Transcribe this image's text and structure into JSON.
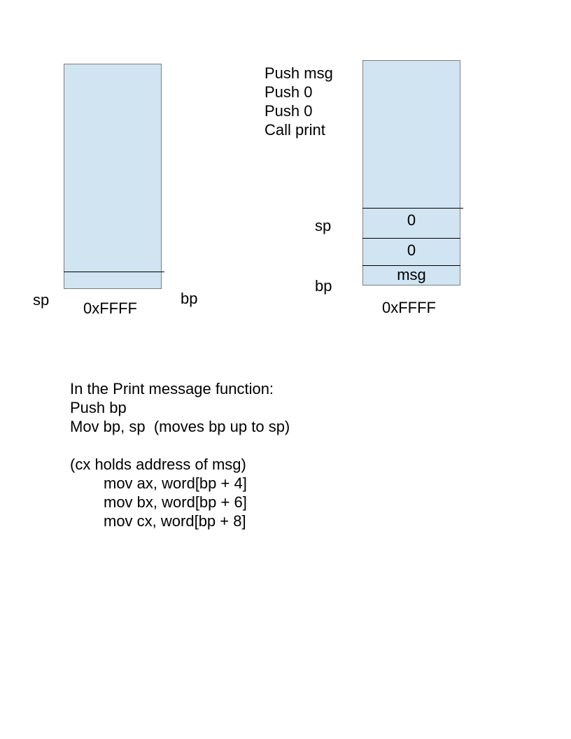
{
  "colors": {
    "stack_fill": "#d0e4f2",
    "stack_border": "#7f7f7f",
    "divider": "#000000"
  },
  "left_stack": {
    "sp_label": "sp",
    "bp_label": "bp",
    "bottom_address": "0xFFFF"
  },
  "right_stack": {
    "instructions": [
      "Push msg",
      "Push 0",
      "Push 0",
      "Call print"
    ],
    "cells": [
      "0",
      "0",
      "msg"
    ],
    "sp_label": "sp",
    "bp_label": "bp",
    "bottom_address": "0xFFFF"
  },
  "notes": {
    "lines": [
      "In the Print message function:",
      "Push bp",
      "Mov bp, sp  (moves bp up to sp)",
      "",
      "(cx holds address of msg)"
    ],
    "code": [
      "mov ax, word[bp + 4]",
      "mov bx, word[bp + 6]",
      "mov cx, word[bp + 8]"
    ]
  }
}
